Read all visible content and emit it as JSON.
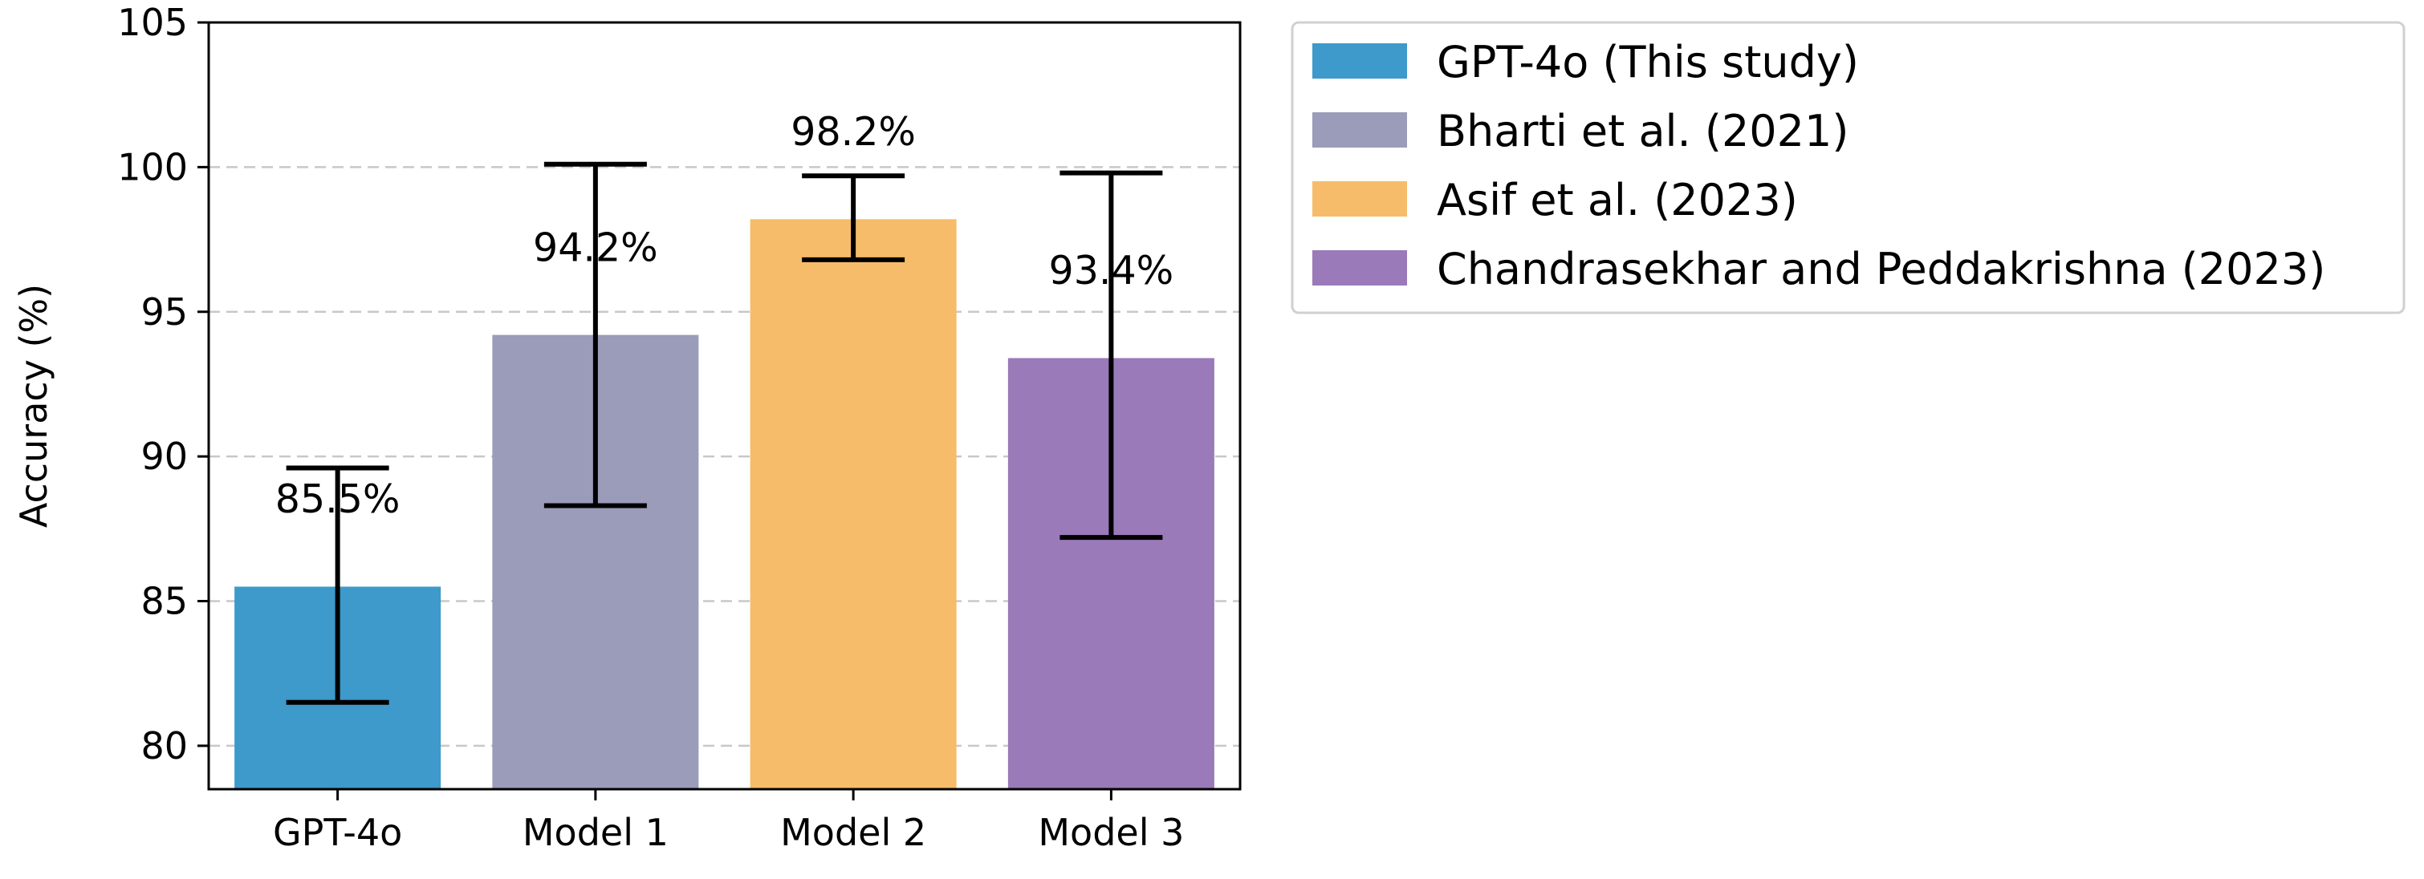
{
  "chart_data": {
    "type": "bar",
    "categories": [
      "GPT-4o",
      "Model 1",
      "Model 2",
      "Model 3"
    ],
    "values": [
      85.5,
      94.2,
      98.2,
      93.4
    ],
    "error_low": [
      81.5,
      88.3,
      96.8,
      87.2
    ],
    "error_high": [
      89.6,
      100.1,
      99.7,
      99.8
    ],
    "bar_labels": [
      "85.5%",
      "94.2%",
      "98.2%",
      "93.4%"
    ],
    "colors": [
      "#3d9aca",
      "#9b9bba",
      "#f7bc69",
      "#9a7ab8"
    ],
    "xlabel": "",
    "ylabel": "Accuracy (%)",
    "ylim": [
      78.5,
      105
    ],
    "yticks": [
      80,
      85,
      90,
      95,
      100,
      105
    ],
    "grid": "horizontal dashed",
    "legend": {
      "placement": "outside-right-top",
      "entries": [
        "GPT-4o (This study)",
        "Bharti et al. (2021)",
        "Asif et al. (2023)",
        "Chandrasekhar and Peddakrishna (2023)"
      ]
    }
  }
}
